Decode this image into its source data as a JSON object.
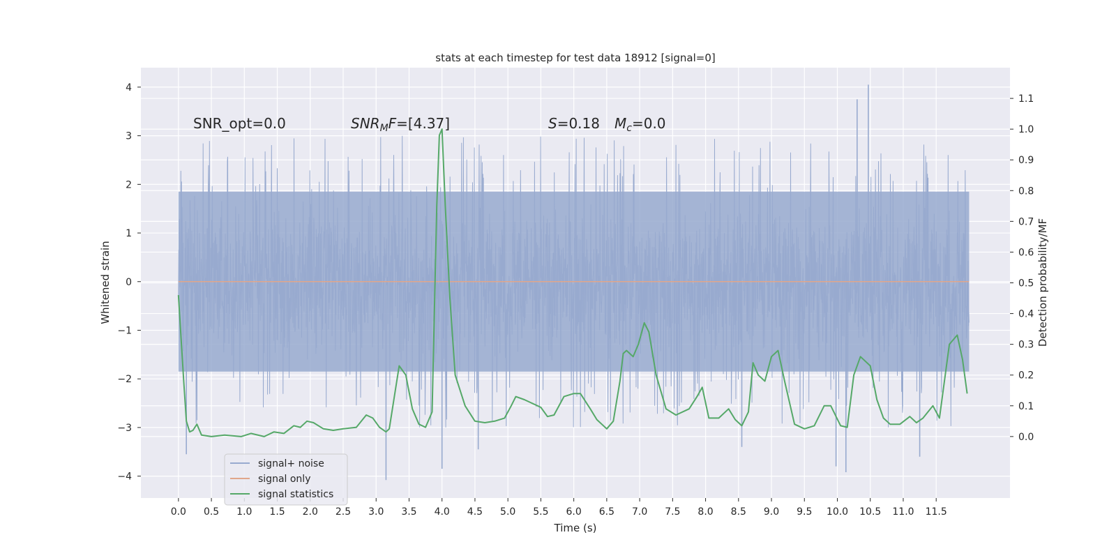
{
  "chart_data": {
    "type": "line",
    "title": "stats at each timestep for test data 18912 [signal=0]",
    "xlabel": "Time (s)",
    "ylabel": "Whitened strain",
    "y2label": "Detection probability/MF",
    "xlim": [
      -0.57,
      12.62
    ],
    "ylim": [
      -4.45,
      4.4
    ],
    "y2lim": [
      -0.2,
      1.2
    ],
    "xticks": [
      0.0,
      0.5,
      1.0,
      1.5,
      2.0,
      2.5,
      3.0,
      3.5,
      4.0,
      4.5,
      5.0,
      5.5,
      6.0,
      6.5,
      7.0,
      7.5,
      8.0,
      8.5,
      9.0,
      9.5,
      10.0,
      10.5,
      11.0,
      11.5
    ],
    "xtick_labels": [
      "0.0",
      "0.5",
      "1.0",
      "1.5",
      "2.0",
      "2.5",
      "3.0",
      "3.5",
      "4.0",
      "4.5",
      "5.0",
      "5.5",
      "6.0",
      "6.5",
      "7.0",
      "7.5",
      "8.0",
      "8.5",
      "9.0",
      "9.5",
      "10.0",
      "10.5",
      "11.0",
      "11.5"
    ],
    "yticks": [
      -4,
      -3,
      -2,
      -1,
      0,
      1,
      2,
      3,
      4
    ],
    "ytick_labels": [
      "−4",
      "−3",
      "−2",
      "−1",
      "0",
      "1",
      "2",
      "3",
      "4"
    ],
    "y2ticks": [
      0.0,
      0.1,
      0.2,
      0.3,
      0.4,
      0.5,
      0.6,
      0.7,
      0.8,
      0.9,
      1.0,
      1.1
    ],
    "y2tick_labels": [
      "0.0",
      "0.1",
      "0.2",
      "0.3",
      "0.4",
      "0.5",
      "0.6",
      "0.7",
      "0.8",
      "0.9",
      "1.0",
      "1.1"
    ],
    "grid": true,
    "legend_position": "lower-left",
    "annotations": {
      "snr_opt": "SNR_opt=0.0",
      "snr_mf_main": "SNR",
      "snr_mf_sub": "M",
      "snr_mf_rest": "F=[4.37]",
      "s_label": "S",
      "s_value": "=0.18",
      "mc_label": "M",
      "mc_sub": "c",
      "mc_value": "=0.0"
    },
    "series": [
      {
        "name": "signal+ noise",
        "color": "#98aacf",
        "axis": "left",
        "description": "whitened noise strain, t = 0..12 s, dense band roughly within [-2.1, 2.1] with spikes up to ~4.0 and down to ~-4.1",
        "t_start": 0.0,
        "t_end": 12.0,
        "band_upper": 1.85,
        "band_lower": -1.85,
        "outlier_spikes": [
          {
            "t": 3.15,
            "v": -4.08
          },
          {
            "t": 4.0,
            "v": -3.85
          },
          {
            "t": 10.47,
            "v": 4.05
          },
          {
            "t": 10.13,
            "v": -3.92
          },
          {
            "t": 11.25,
            "v": -3.6
          },
          {
            "t": 10.3,
            "v": 3.75
          },
          {
            "t": 0.12,
            "v": -3.55
          },
          {
            "t": 9.98,
            "v": -3.8
          },
          {
            "t": 4.55,
            "v": -3.45
          },
          {
            "t": 8.55,
            "v": -3.4
          }
        ]
      },
      {
        "name": "signal only",
        "color": "#e1a68b",
        "axis": "left",
        "x": [
          0.0,
          12.0
        ],
        "values": [
          0.0,
          0.0
        ]
      },
      {
        "name": "signal statistics",
        "color": "#55a868",
        "axis": "right",
        "x": [
          0.0,
          0.04,
          0.08,
          0.12,
          0.17,
          0.22,
          0.28,
          0.35,
          0.5,
          0.7,
          0.95,
          1.1,
          1.3,
          1.45,
          1.6,
          1.75,
          1.85,
          1.95,
          2.05,
          2.2,
          2.35,
          2.5,
          2.7,
          2.85,
          2.95,
          3.05,
          3.15,
          3.2,
          3.35,
          3.45,
          3.55,
          3.65,
          3.75,
          3.85,
          3.92,
          3.96,
          4.0,
          4.05,
          4.12,
          4.2,
          4.35,
          4.5,
          4.65,
          4.8,
          4.95,
          5.05,
          5.12,
          5.25,
          5.35,
          5.5,
          5.6,
          5.7,
          5.85,
          6.0,
          6.1,
          6.25,
          6.35,
          6.5,
          6.6,
          6.7,
          6.75,
          6.8,
          6.9,
          6.98,
          7.07,
          7.14,
          7.25,
          7.4,
          7.55,
          7.75,
          7.87,
          7.95,
          8.05,
          8.2,
          8.35,
          8.45,
          8.55,
          8.65,
          8.72,
          8.8,
          8.9,
          9.0,
          9.1,
          9.2,
          9.35,
          9.5,
          9.65,
          9.8,
          9.9,
          10.05,
          10.15,
          10.25,
          10.35,
          10.5,
          10.6,
          10.7,
          10.8,
          10.95,
          11.1,
          11.2,
          11.3,
          11.45,
          11.55,
          11.7,
          11.82,
          11.9,
          11.97
        ],
        "values": [
          0.46,
          0.32,
          0.18,
          0.05,
          0.015,
          0.02,
          0.04,
          0.005,
          0.0,
          0.005,
          0.0,
          0.01,
          0.0,
          0.015,
          0.01,
          0.035,
          0.03,
          0.05,
          0.045,
          0.025,
          0.02,
          0.025,
          0.03,
          0.07,
          0.06,
          0.03,
          0.015,
          0.025,
          0.23,
          0.2,
          0.09,
          0.04,
          0.03,
          0.08,
          0.75,
          0.98,
          1.0,
          0.75,
          0.45,
          0.2,
          0.1,
          0.05,
          0.045,
          0.05,
          0.06,
          0.1,
          0.13,
          0.12,
          0.11,
          0.095,
          0.065,
          0.07,
          0.13,
          0.14,
          0.14,
          0.09,
          0.055,
          0.025,
          0.05,
          0.18,
          0.27,
          0.28,
          0.26,
          0.3,
          0.37,
          0.34,
          0.2,
          0.09,
          0.07,
          0.09,
          0.13,
          0.16,
          0.06,
          0.06,
          0.09,
          0.055,
          0.035,
          0.08,
          0.24,
          0.2,
          0.18,
          0.26,
          0.28,
          0.18,
          0.04,
          0.025,
          0.035,
          0.1,
          0.1,
          0.035,
          0.03,
          0.2,
          0.26,
          0.23,
          0.12,
          0.06,
          0.04,
          0.04,
          0.065,
          0.045,
          0.06,
          0.1,
          0.06,
          0.3,
          0.33,
          0.25,
          0.14
        ]
      }
    ]
  }
}
